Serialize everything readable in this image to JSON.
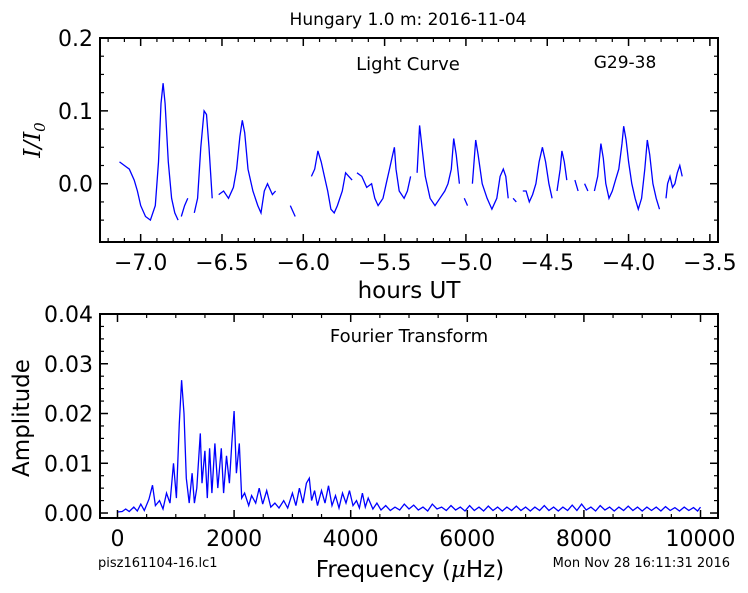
{
  "figure": {
    "title": "Hungary 1.0 m:  2016-11-04",
    "footer_left": "pisz161104-16.lc1",
    "footer_right": "Mon Nov 28 16:11:31 2016",
    "line_color": "#0000ff"
  },
  "chart_data": [
    {
      "type": "line",
      "panel": "light-curve",
      "title": "Light Curve",
      "annotation": "G29-38",
      "xlabel": "hours UT",
      "ylabel": "I/I_0",
      "xlim": [
        -7.25,
        -3.45
      ],
      "ylim": [
        -0.08,
        0.2
      ],
      "x_ticks": [
        -7.0,
        -6.5,
        -6.0,
        -5.5,
        -5.0,
        -4.5,
        -4.0,
        -3.5
      ],
      "x_tick_labels": [
        "−7.0",
        "−6.5",
        "−6.0",
        "−5.5",
        "−5.0",
        "−4.5",
        "−4.0",
        "−3.5"
      ],
      "y_ticks": [
        0.0,
        0.1,
        0.2
      ],
      "y_tick_labels": [
        "0.0",
        "0.1",
        "0.2"
      ],
      "grid": false,
      "series_keys": [
        "x",
        "y"
      ],
      "segments": [
        [
          [
            -7.13,
            0.03
          ],
          [
            -7.1,
            0.025
          ],
          [
            -7.07,
            0.02
          ],
          [
            -7.04,
            0.005
          ],
          [
            -7.02,
            -0.01
          ],
          [
            -7.0,
            -0.03
          ],
          [
            -6.97,
            -0.045
          ],
          [
            -6.94,
            -0.05
          ],
          [
            -6.91,
            -0.03
          ],
          [
            -6.89,
            0.03
          ],
          [
            -6.875,
            0.11
          ],
          [
            -6.862,
            0.138
          ],
          [
            -6.85,
            0.11
          ],
          [
            -6.83,
            0.03
          ],
          [
            -6.81,
            -0.02
          ],
          [
            -6.79,
            -0.04
          ],
          [
            -6.77,
            -0.05
          ]
        ],
        [
          [
            -6.75,
            -0.045
          ],
          [
            -6.73,
            -0.03
          ],
          [
            -6.71,
            -0.02
          ]
        ],
        [
          [
            -6.67,
            -0.04
          ],
          [
            -6.65,
            -0.02
          ],
          [
            -6.63,
            0.05
          ],
          [
            -6.61,
            0.1
          ],
          [
            -6.595,
            0.095
          ],
          [
            -6.58,
            0.05
          ],
          [
            -6.56,
            -0.02
          ]
        ],
        [
          [
            -6.52,
            -0.015
          ],
          [
            -6.49,
            -0.01
          ],
          [
            -6.46,
            -0.02
          ],
          [
            -6.43,
            -0.005
          ],
          [
            -6.41,
            0.02
          ],
          [
            -6.39,
            0.065
          ],
          [
            -6.375,
            0.087
          ],
          [
            -6.36,
            0.07
          ],
          [
            -6.34,
            0.02
          ],
          [
            -6.31,
            -0.01
          ],
          [
            -6.28,
            -0.03
          ],
          [
            -6.26,
            -0.04
          ],
          [
            -6.24,
            -0.01
          ],
          [
            -6.22,
            0.0
          ],
          [
            -6.19,
            -0.015
          ],
          [
            -6.17,
            -0.01
          ]
        ],
        [
          [
            -6.08,
            -0.03
          ],
          [
            -6.05,
            -0.045
          ]
        ],
        [
          [
            -5.95,
            0.01
          ],
          [
            -5.93,
            0.02
          ],
          [
            -5.91,
            0.045
          ],
          [
            -5.89,
            0.03
          ],
          [
            -5.87,
            0.01
          ],
          [
            -5.85,
            -0.01
          ],
          [
            -5.83,
            -0.035
          ],
          [
            -5.81,
            -0.04
          ],
          [
            -5.79,
            -0.03
          ],
          [
            -5.76,
            -0.01
          ],
          [
            -5.74,
            0.015
          ],
          [
            -5.72,
            0.01
          ],
          [
            -5.7,
            0.005
          ]
        ],
        [
          [
            -5.67,
            0.015
          ],
          [
            -5.64,
            0.01
          ],
          [
            -5.61,
            -0.005
          ],
          [
            -5.58,
            0.0
          ],
          [
            -5.56,
            -0.02
          ],
          [
            -5.54,
            -0.03
          ],
          [
            -5.51,
            -0.02
          ],
          [
            -5.49,
            0.0
          ],
          [
            -5.47,
            0.02
          ],
          [
            -5.45,
            0.04
          ],
          [
            -5.44,
            0.05
          ],
          [
            -5.43,
            0.02
          ],
          [
            -5.41,
            -0.01
          ],
          [
            -5.38,
            -0.02
          ],
          [
            -5.36,
            -0.01
          ],
          [
            -5.34,
            0.01
          ]
        ],
        [
          [
            -5.3,
            0.015
          ],
          [
            -5.285,
            0.08
          ],
          [
            -5.27,
            0.05
          ],
          [
            -5.25,
            0.01
          ],
          [
            -5.22,
            -0.02
          ],
          [
            -5.19,
            -0.03
          ],
          [
            -5.16,
            -0.02
          ],
          [
            -5.13,
            -0.01
          ],
          [
            -5.11,
            0.0
          ],
          [
            -5.09,
            0.02
          ],
          [
            -5.075,
            0.062
          ],
          [
            -5.06,
            0.04
          ],
          [
            -5.04,
            0.0
          ]
        ],
        [
          [
            -5.01,
            -0.02
          ],
          [
            -4.99,
            -0.03
          ]
        ],
        [
          [
            -4.96,
            0.0
          ],
          [
            -4.94,
            0.06
          ],
          [
            -4.925,
            0.04
          ],
          [
            -4.9,
            0.0
          ],
          [
            -4.87,
            -0.02
          ],
          [
            -4.84,
            -0.035
          ],
          [
            -4.81,
            -0.02
          ],
          [
            -4.79,
            0.01
          ],
          [
            -4.77,
            0.02
          ],
          [
            -4.755,
            0.01
          ],
          [
            -4.74,
            -0.02
          ]
        ],
        [
          [
            -4.71,
            -0.02
          ],
          [
            -4.69,
            -0.025
          ]
        ],
        [
          [
            -4.65,
            -0.01
          ],
          [
            -4.63,
            -0.01
          ],
          [
            -4.61,
            -0.025
          ],
          [
            -4.59,
            -0.015
          ],
          [
            -4.57,
            0.0
          ],
          [
            -4.55,
            0.03
          ],
          [
            -4.53,
            0.05
          ],
          [
            -4.51,
            0.03
          ],
          [
            -4.49,
            0.0
          ],
          [
            -4.47,
            -0.02
          ]
        ],
        [
          [
            -4.44,
            -0.01
          ],
          [
            -4.42,
            0.02
          ],
          [
            -4.41,
            0.045
          ],
          [
            -4.395,
            0.03
          ],
          [
            -4.38,
            0.005
          ]
        ],
        [
          [
            -4.33,
            0.005
          ],
          [
            -4.31,
            -0.01
          ]
        ],
        [
          [
            -4.27,
            0.0
          ],
          [
            -4.25,
            -0.01
          ]
        ],
        [
          [
            -4.21,
            -0.01
          ],
          [
            -4.19,
            0.01
          ],
          [
            -4.17,
            0.055
          ],
          [
            -4.155,
            0.035
          ],
          [
            -4.14,
            0.0
          ],
          [
            -4.12,
            -0.02
          ],
          [
            -4.1,
            -0.01
          ],
          [
            -4.08,
            0.005
          ],
          [
            -4.06,
            0.02
          ],
          [
            -4.04,
            0.055
          ],
          [
            -4.03,
            0.079
          ],
          [
            -4.015,
            0.06
          ],
          [
            -4.0,
            0.03
          ],
          [
            -3.98,
            0.0
          ],
          [
            -3.96,
            -0.02
          ],
          [
            -3.94,
            -0.035
          ],
          [
            -3.92,
            -0.02
          ],
          [
            -3.9,
            0.02
          ],
          [
            -3.885,
            0.06
          ],
          [
            -3.87,
            0.04
          ],
          [
            -3.85,
            0.0
          ],
          [
            -3.83,
            -0.02
          ],
          [
            -3.81,
            -0.035
          ]
        ],
        [
          [
            -3.77,
            -0.02
          ],
          [
            -3.76,
            0.0
          ],
          [
            -3.745,
            0.01
          ],
          [
            -3.73,
            -0.005
          ],
          [
            -3.715,
            0.0
          ],
          [
            -3.7,
            0.015
          ],
          [
            -3.685,
            0.025
          ],
          [
            -3.67,
            0.01
          ]
        ]
      ]
    },
    {
      "type": "line",
      "panel": "fourier-transform",
      "title": "Fourier Transform",
      "xlabel": "Frequency (μHz)",
      "ylabel": "Amplitude",
      "xlim": [
        -300,
        10300
      ],
      "ylim": [
        -0.001,
        0.04
      ],
      "x_ticks": [
        0,
        2000,
        4000,
        6000,
        8000,
        10000
      ],
      "x_tick_labels": [
        "0",
        "2000",
        "4000",
        "6000",
        "8000",
        "10000"
      ],
      "y_ticks": [
        0.0,
        0.01,
        0.02,
        0.03,
        0.04
      ],
      "y_tick_labels": [
        "0.00",
        "0.01",
        "0.02",
        "0.03",
        "0.04"
      ],
      "grid": false,
      "series_keys": [
        "x",
        "y"
      ],
      "points": [
        [
          0,
          0.0002
        ],
        [
          80,
          0.0003
        ],
        [
          140,
          0.0008
        ],
        [
          200,
          0.0003
        ],
        [
          280,
          0.0012
        ],
        [
          340,
          0.0004
        ],
        [
          400,
          0.0018
        ],
        [
          460,
          0.0005
        ],
        [
          540,
          0.0028
        ],
        [
          600,
          0.0056
        ],
        [
          650,
          0.0015
        ],
        [
          720,
          0.0025
        ],
        [
          780,
          0.0008
        ],
        [
          840,
          0.004
        ],
        [
          900,
          0.002
        ],
        [
          960,
          0.01
        ],
        [
          1010,
          0.003
        ],
        [
          1060,
          0.018
        ],
        [
          1100,
          0.0267
        ],
        [
          1140,
          0.02
        ],
        [
          1180,
          0.007
        ],
        [
          1230,
          0.002
        ],
        [
          1280,
          0.008
        ],
        [
          1320,
          0.002
        ],
        [
          1360,
          0.005
        ],
        [
          1420,
          0.016
        ],
        [
          1450,
          0.006
        ],
        [
          1500,
          0.0125
        ],
        [
          1540,
          0.003
        ],
        [
          1580,
          0.013
        ],
        [
          1620,
          0.004
        ],
        [
          1670,
          0.014
        ],
        [
          1720,
          0.005
        ],
        [
          1780,
          0.013
        ],
        [
          1820,
          0.004
        ],
        [
          1870,
          0.0115
        ],
        [
          1920,
          0.006
        ],
        [
          1960,
          0.014
        ],
        [
          2000,
          0.0205
        ],
        [
          2040,
          0.008
        ],
        [
          2090,
          0.014
        ],
        [
          2130,
          0.003
        ],
        [
          2180,
          0.004
        ],
        [
          2250,
          0.0015
        ],
        [
          2300,
          0.0035
        ],
        [
          2370,
          0.002
        ],
        [
          2430,
          0.005
        ],
        [
          2490,
          0.0018
        ],
        [
          2560,
          0.0045
        ],
        [
          2630,
          0.0012
        ],
        [
          2700,
          0.002
        ],
        [
          2770,
          0.001
        ],
        [
          2850,
          0.0025
        ],
        [
          2920,
          0.001
        ],
        [
          3000,
          0.004
        ],
        [
          3060,
          0.0015
        ],
        [
          3120,
          0.005
        ],
        [
          3180,
          0.002
        ],
        [
          3240,
          0.006
        ],
        [
          3290,
          0.007
        ],
        [
          3330,
          0.0025
        ],
        [
          3380,
          0.0045
        ],
        [
          3430,
          0.0015
        ],
        [
          3500,
          0.0045
        ],
        [
          3560,
          0.002
        ],
        [
          3620,
          0.0055
        ],
        [
          3680,
          0.0015
        ],
        [
          3740,
          0.0035
        ],
        [
          3800,
          0.001
        ],
        [
          3860,
          0.004
        ],
        [
          3920,
          0.002
        ],
        [
          3980,
          0.0045
        ],
        [
          4040,
          0.0015
        ],
        [
          4100,
          0.0025
        ],
        [
          4150,
          0.001
        ],
        [
          4200,
          0.004
        ],
        [
          4250,
          0.0012
        ],
        [
          4300,
          0.003
        ],
        [
          4380,
          0.0008
        ],
        [
          4450,
          0.002
        ],
        [
          4520,
          0.0006
        ],
        [
          4600,
          0.0015
        ],
        [
          4680,
          0.0005
        ],
        [
          4760,
          0.0012
        ],
        [
          4840,
          0.0006
        ],
        [
          4920,
          0.0018
        ],
        [
          5000,
          0.0008
        ],
        [
          5080,
          0.0016
        ],
        [
          5160,
          0.0006
        ],
        [
          5240,
          0.0012
        ],
        [
          5320,
          0.0004
        ],
        [
          5400,
          0.0018
        ],
        [
          5480,
          0.0008
        ],
        [
          5560,
          0.0012
        ],
        [
          5640,
          0.0005
        ],
        [
          5720,
          0.0015
        ],
        [
          5800,
          0.0006
        ],
        [
          5880,
          0.0012
        ],
        [
          5960,
          0.0004
        ],
        [
          6040,
          0.0015
        ],
        [
          6120,
          0.0005
        ],
        [
          6200,
          0.0012
        ],
        [
          6280,
          0.0004
        ],
        [
          6360,
          0.0014
        ],
        [
          6440,
          0.0005
        ],
        [
          6520,
          0.0012
        ],
        [
          6600,
          0.0004
        ],
        [
          6680,
          0.0012
        ],
        [
          6760,
          0.0005
        ],
        [
          6840,
          0.0014
        ],
        [
          6920,
          0.0005
        ],
        [
          7000,
          0.0012
        ],
        [
          7080,
          0.0004
        ],
        [
          7160,
          0.0012
        ],
        [
          7240,
          0.0005
        ],
        [
          7320,
          0.0015
        ],
        [
          7400,
          0.0005
        ],
        [
          7480,
          0.0012
        ],
        [
          7560,
          0.0004
        ],
        [
          7640,
          0.0012
        ],
        [
          7720,
          0.0005
        ],
        [
          7800,
          0.0016
        ],
        [
          7880,
          0.0005
        ],
        [
          7960,
          0.0018
        ],
        [
          8040,
          0.0006
        ],
        [
          8120,
          0.0012
        ],
        [
          8200,
          0.0004
        ],
        [
          8280,
          0.0015
        ],
        [
          8360,
          0.0006
        ],
        [
          8440,
          0.0012
        ],
        [
          8520,
          0.0004
        ],
        [
          8600,
          0.0012
        ],
        [
          8680,
          0.0005
        ],
        [
          8760,
          0.0014
        ],
        [
          8840,
          0.0005
        ],
        [
          8920,
          0.0012
        ],
        [
          9000,
          0.0004
        ],
        [
          9080,
          0.0012
        ],
        [
          9160,
          0.0005
        ],
        [
          9240,
          0.0012
        ],
        [
          9320,
          0.0004
        ],
        [
          9400,
          0.0013
        ],
        [
          9480,
          0.0005
        ],
        [
          9560,
          0.0011
        ],
        [
          9640,
          0.0004
        ],
        [
          9720,
          0.0012
        ],
        [
          9800,
          0.0005
        ],
        [
          9880,
          0.0011
        ],
        [
          9950,
          0.0004
        ],
        [
          10000,
          0.0012
        ]
      ]
    }
  ]
}
